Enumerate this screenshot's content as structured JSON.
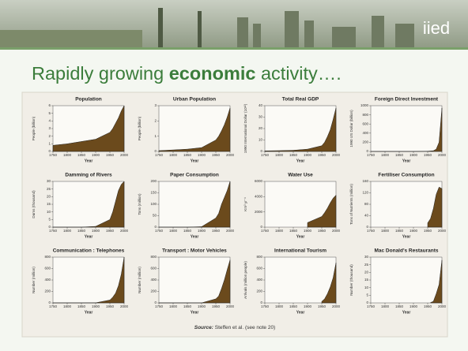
{
  "slide": {
    "logo": "iied",
    "title_parts": [
      "Rapidly growing ",
      "economic",
      " activity…."
    ],
    "source_parts": [
      "Source:",
      " Steffen et al. (see note 20)"
    ]
  },
  "chart_data": [
    {
      "type": "area",
      "title": "Population",
      "ylabel": "People (billion)",
      "xlabel": "Year",
      "x": [
        1750,
        1800,
        1850,
        1900,
        1950,
        1960,
        1970,
        1980,
        1990,
        2000
      ],
      "values": [
        0.8,
        1.0,
        1.3,
        1.6,
        2.5,
        3.0,
        3.7,
        4.4,
        5.3,
        6.0
      ],
      "xlim": [
        1750,
        2000
      ],
      "xticks": [
        1750,
        1800,
        1850,
        1900,
        1950,
        2000
      ],
      "ylim": [
        0,
        6
      ],
      "yticks": [
        0,
        1,
        2,
        3,
        4,
        5,
        6
      ],
      "color": "#6b4a1c"
    },
    {
      "type": "area",
      "title": "Urban Population",
      "ylabel": "People (billion)",
      "xlabel": "Year",
      "x": [
        1750,
        1800,
        1850,
        1900,
        1950,
        1960,
        1970,
        1980,
        1990,
        2000
      ],
      "values": [
        0.05,
        0.1,
        0.15,
        0.25,
        0.75,
        1.0,
        1.35,
        1.75,
        2.25,
        2.85
      ],
      "xlim": [
        1750,
        2000
      ],
      "xticks": [
        1750,
        1800,
        1850,
        1900,
        1950,
        2000
      ],
      "ylim": [
        0,
        3
      ],
      "yticks": [
        0,
        1,
        2,
        3
      ],
      "color": "#6b4a1c"
    },
    {
      "type": "area",
      "title": "Total Real GDP",
      "ylabel": "1990 International Dollar (10¹²)",
      "xlabel": "Year",
      "x": [
        1750,
        1800,
        1850,
        1900,
        1950,
        1960,
        1970,
        1980,
        1990,
        2000
      ],
      "values": [
        0.5,
        0.7,
        1,
        2,
        5,
        8,
        13,
        19,
        28,
        38
      ],
      "xlim": [
        1750,
        2000
      ],
      "xticks": [
        1750,
        1800,
        1850,
        1900,
        1950,
        2000
      ],
      "ylim": [
        0,
        40
      ],
      "yticks": [
        0,
        10,
        20,
        30,
        40
      ],
      "color": "#6b4a1c"
    },
    {
      "type": "area",
      "title": "Foreign Direct Investment",
      "ylabel": "1990 US Dollar (billion)",
      "xlabel": "Year",
      "x": [
        1750,
        1800,
        1850,
        1900,
        1950,
        1960,
        1970,
        1980,
        1990,
        2000
      ],
      "values": [
        0,
        0,
        0,
        0,
        5,
        10,
        15,
        50,
        200,
        950
      ],
      "xlim": [
        1750,
        2000
      ],
      "xticks": [
        1750,
        1800,
        1850,
        1900,
        1950,
        2000
      ],
      "ylim": [
        0,
        1000
      ],
      "yticks": [
        0,
        200,
        400,
        600,
        800,
        1000
      ],
      "color": "#6b4a1c"
    },
    {
      "type": "area",
      "title": "Damming of Rivers",
      "ylabel": "Dams (thousand)",
      "xlabel": "Year",
      "x": [
        1750,
        1800,
        1850,
        1900,
        1950,
        1960,
        1970,
        1980,
        1990,
        2000
      ],
      "values": [
        0,
        0,
        0,
        0.5,
        5,
        10,
        17,
        24,
        28,
        30
      ],
      "xlim": [
        1750,
        2000
      ],
      "xticks": [
        1750,
        1800,
        1850,
        1900,
        1950,
        2000
      ],
      "ylim": [
        0,
        30
      ],
      "yticks": [
        0,
        5,
        10,
        15,
        20,
        25,
        30
      ],
      "color": "#6b4a1c"
    },
    {
      "type": "area",
      "title": "Paper Consumption",
      "ylabel": "Tons (million)",
      "xlabel": "Year",
      "x": [
        1750,
        1800,
        1850,
        1900,
        1950,
        1960,
        1970,
        1980,
        1990,
        2000
      ],
      "values": [
        0,
        0,
        0,
        2,
        40,
        60,
        100,
        130,
        160,
        200
      ],
      "xlim": [
        1750,
        2000
      ],
      "xticks": [
        1750,
        1800,
        1850,
        1900,
        1950,
        2000
      ],
      "ylim": [
        0,
        200
      ],
      "yticks": [
        0,
        50,
        100,
        150,
        200
      ],
      "color": "#6b4a1c"
    },
    {
      "type": "area",
      "title": "Water Use",
      "ylabel": "Km³ yr⁻¹",
      "xlabel": "Year",
      "x": [
        1750,
        1800,
        1850,
        1900,
        1950,
        1960,
        1970,
        1980,
        1990,
        2000
      ],
      "values": [
        null,
        null,
        null,
        600,
        1400,
        1900,
        2500,
        3200,
        3800,
        4200
      ],
      "xlim": [
        1750,
        2000
      ],
      "xticks": [
        1750,
        1800,
        1850,
        1900,
        1950,
        2000
      ],
      "ylim": [
        0,
        6000
      ],
      "yticks": [
        0,
        2000,
        4000,
        6000
      ],
      "color": "#6b4a1c"
    },
    {
      "type": "area",
      "title": "Fertiliser Consumption",
      "ylabel": "Tons of Nutrients (million)",
      "xlabel": "Year",
      "x": [
        1750,
        1800,
        1850,
        1900,
        1950,
        1960,
        1970,
        1980,
        1990,
        2000
      ],
      "values": [
        null,
        null,
        null,
        null,
        15,
        30,
        65,
        115,
        140,
        135
      ],
      "xlim": [
        1750,
        2000
      ],
      "xticks": [
        1750,
        1800,
        1850,
        1900,
        1950,
        2000
      ],
      "ylim": [
        0,
        160
      ],
      "yticks": [
        0,
        40,
        80,
        120,
        160
      ],
      "color": "#6b4a1c"
    },
    {
      "type": "area",
      "title": "Communication : Telephones",
      "ylabel": "Number (million)",
      "xlabel": "Year",
      "x": [
        1750,
        1800,
        1850,
        1900,
        1950,
        1960,
        1970,
        1980,
        1990,
        2000
      ],
      "values": [
        0,
        0,
        0,
        1,
        50,
        100,
        170,
        300,
        500,
        800
      ],
      "xlim": [
        1750,
        2000
      ],
      "xticks": [
        1750,
        1800,
        1850,
        1900,
        1950,
        2000
      ],
      "ylim": [
        0,
        800
      ],
      "yticks": [
        0,
        200,
        400,
        600,
        800
      ],
      "color": "#6b4a1c"
    },
    {
      "type": "area",
      "title": "Transport : Motor Vehicles",
      "ylabel": "Number (million)",
      "xlabel": "Year",
      "x": [
        1750,
        1800,
        1850,
        1900,
        1950,
        1960,
        1970,
        1980,
        1990,
        2000
      ],
      "values": [
        0,
        0,
        0,
        0,
        70,
        120,
        250,
        400,
        580,
        750
      ],
      "xlim": [
        1750,
        2000
      ],
      "xticks": [
        1750,
        1800,
        1850,
        1900,
        1950,
        2000
      ],
      "ylim": [
        0,
        800
      ],
      "yticks": [
        0,
        200,
        400,
        600,
        800
      ],
      "color": "#6b4a1c"
    },
    {
      "type": "area",
      "title": "International Tourism",
      "ylabel": "Arrivals (million people)",
      "xlabel": "Year",
      "x": [
        1750,
        1800,
        1850,
        1900,
        1950,
        1960,
        1970,
        1980,
        1990,
        2000
      ],
      "values": [
        null,
        null,
        null,
        null,
        25,
        70,
        160,
        280,
        440,
        700
      ],
      "xlim": [
        1750,
        2000
      ],
      "xticks": [
        1750,
        1800,
        1850,
        1900,
        1950,
        2000
      ],
      "ylim": [
        0,
        800
      ],
      "yticks": [
        0,
        200,
        400,
        600,
        800
      ],
      "color": "#6b4a1c"
    },
    {
      "type": "area",
      "title": "Mac Donald's Restaurants",
      "ylabel": "Number (thousand)",
      "xlabel": "Year",
      "x": [
        1750,
        1800,
        1850,
        1900,
        1950,
        1960,
        1970,
        1980,
        1990,
        2000
      ],
      "values": [
        null,
        null,
        null,
        null,
        null,
        0.2,
        1,
        6,
        12,
        28
      ],
      "xlim": [
        1750,
        2000
      ],
      "xticks": [
        1750,
        1800,
        1850,
        1900,
        1950,
        2000
      ],
      "ylim": [
        0,
        30
      ],
      "yticks": [
        0,
        5,
        10,
        15,
        20,
        25,
        30
      ],
      "color": "#6b4a1c"
    }
  ]
}
